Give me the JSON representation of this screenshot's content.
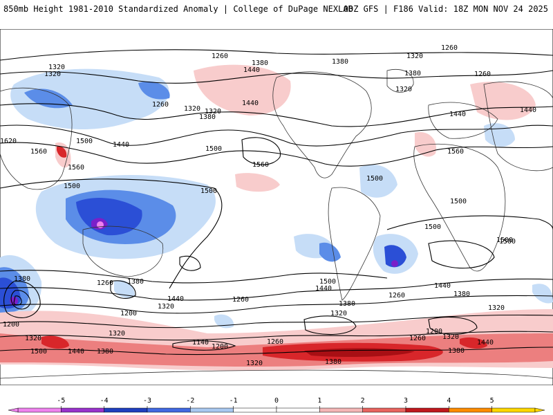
{
  "header": {
    "left": "850mb Height 1981-2010 Standardized Anomaly | College of DuPage NEXLAB",
    "right": "00Z GFS | F186 Valid: 18Z MON NOV 24 2025"
  },
  "colorbar": {
    "ticks": [
      "-5",
      "-4",
      "-3",
      "-2",
      "-1",
      "0",
      "1",
      "2",
      "3",
      "4",
      "5"
    ],
    "colors": [
      "#ee82ee",
      "#9932cc",
      "#1f3fbf",
      "#4169e1",
      "#a8c8f0",
      "#ffffff",
      "#ffffff",
      "#f4b6b6",
      "#e8645f",
      "#c0181d",
      "#ff8c00",
      "#ffd700"
    ]
  },
  "contour_labels": [
    "1260",
    "1320",
    "1320",
    "1380",
    "1440",
    "1380",
    "1320",
    "1260",
    "1320",
    "1380",
    "1260",
    "1320",
    "1260",
    "1320",
    "1380",
    "1440",
    "1440",
    "1500",
    "1560",
    "1500",
    "1440",
    "1560",
    "1620",
    "1560",
    "1500",
    "1500",
    "1500",
    "1560",
    "1500",
    "1500",
    "1500",
    "1380",
    "1260",
    "1380",
    "1320",
    "1200",
    "1260",
    "1320",
    "1440",
    "1380",
    "1200",
    "1320",
    "1500",
    "1440",
    "1380",
    "1140",
    "1200",
    "1260",
    "1500",
    "1440",
    "1380",
    "1320",
    "1260",
    "1200",
    "1320",
    "1260",
    "1440",
    "1380",
    "1320",
    "1380",
    "1440",
    "1500",
    "1440",
    "1320"
  ],
  "anomaly_colors": {
    "neg1": "#c6ddf7",
    "neg2": "#5b8de8",
    "neg3": "#2b4fd6",
    "neg4": "#7a1fc9",
    "neg5": "#ee82ee",
    "pos1": "#f8cccc",
    "pos2": "#ec7f7f",
    "pos3": "#d8262a",
    "pos4": "#a80f14"
  }
}
